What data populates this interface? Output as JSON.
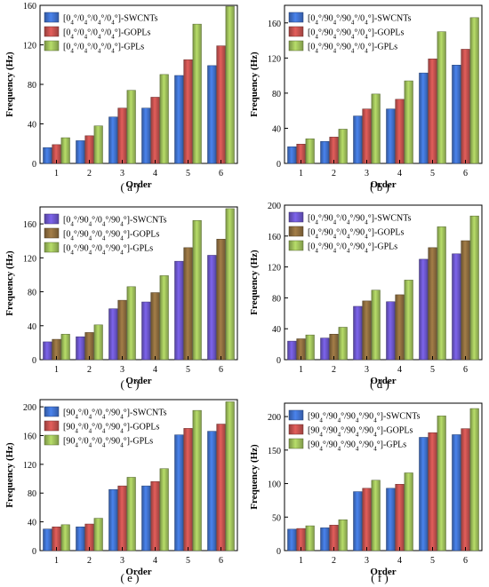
{
  "chart_data": [
    {
      "type": "bar",
      "panel_label": "( a )",
      "categories": [
        "1",
        "2",
        "3",
        "4",
        "5",
        "6"
      ],
      "xlabel": "Order",
      "ylabel": "Frequency (Hz)",
      "ylim": [
        0,
        160
      ],
      "yticks": [
        "0",
        "40",
        "80",
        "120",
        "160"
      ],
      "grid": false,
      "legend_position": "top-left",
      "series": [
        {
          "name": "[0₄°/0₄°/0₄°/0₄°]-SWCNTs",
          "color": "#3f6fc9",
          "values": [
            16,
            23,
            47,
            56,
            89,
            99
          ]
        },
        {
          "name": "[0₄°/0₄°/0₄°/0₄°]-GOPLs",
          "color": "#c0504d",
          "values": [
            19,
            28,
            56,
            67,
            105,
            119
          ]
        },
        {
          "name": "[0₄°/0₄°/0₄°/0₄°]-GPLs",
          "color": "#9bbb59",
          "values": [
            26,
            38,
            74,
            90,
            141,
            159
          ]
        }
      ]
    },
    {
      "type": "bar",
      "panel_label": "( b )",
      "categories": [
        "1",
        "2",
        "3",
        "4",
        "5",
        "6"
      ],
      "xlabel": "Order",
      "ylabel": "Frequency (Hz)",
      "ylim": [
        0,
        180
      ],
      "yticks": [
        "0",
        "40",
        "80",
        "120",
        "160"
      ],
      "grid": false,
      "legend_position": "top-left",
      "series": [
        {
          "name": "[0₄°/90₄°/90₄°/0₄°]-SWCNTs",
          "color": "#3f6fc9",
          "values": [
            19,
            25,
            54,
            62,
            103,
            112
          ]
        },
        {
          "name": "[0₄°/90₄°/90₄°/0₄°]-GOPLs",
          "color": "#c0504d",
          "values": [
            22,
            30,
            62,
            73,
            119,
            130
          ]
        },
        {
          "name": "[0₄°/90₄°/90₄°/0₄°]-GPLs",
          "color": "#9bbb59",
          "values": [
            28,
            39,
            79,
            94,
            150,
            166
          ]
        }
      ]
    },
    {
      "type": "bar",
      "panel_label": "( c )",
      "categories": [
        "1",
        "2",
        "3",
        "4",
        "5",
        "6"
      ],
      "xlabel": "Order",
      "ylabel": "Frequency (Hz)",
      "ylim": [
        0,
        180
      ],
      "yticks": [
        "0",
        "40",
        "80",
        "120",
        "160"
      ],
      "grid": false,
      "legend_position": "top-left",
      "series": [
        {
          "name": "[0₄°/90₄°/0₄°/90₄°]-SWCNTs",
          "color": "#6a55c8",
          "values": [
            21,
            27,
            60,
            68,
            116,
            123
          ]
        },
        {
          "name": "[0₄°/90₄°/0₄°/90₄°]-GOPLs",
          "color": "#8b6b3d",
          "values": [
            24,
            32,
            70,
            79,
            132,
            142
          ]
        },
        {
          "name": "[0₄°/90₄°/0₄°/90₄°]-GPLs",
          "color": "#9bbb59",
          "values": [
            30,
            41,
            86,
            99,
            164,
            178
          ]
        }
      ]
    },
    {
      "type": "bar",
      "panel_label": "( d )",
      "categories": [
        "1",
        "2",
        "3",
        "4",
        "5",
        "6"
      ],
      "xlabel": "Order",
      "ylabel": "Frequency (Hz)",
      "ylim": [
        0,
        200
      ],
      "yticks": [
        "0",
        "40",
        "80",
        "120",
        "160",
        "200"
      ],
      "grid": false,
      "legend_position": "top-left",
      "series": [
        {
          "name": "[0₄°/90₄°/0₄°/90₄°]-SWCNTs",
          "color": "#6a55c8",
          "values": [
            24,
            28,
            69,
            75,
            130,
            137
          ]
        },
        {
          "name": "[0₄°/90₄°/0₄°/90₄°]-GOPLs",
          "color": "#8b6b3d",
          "values": [
            27,
            33,
            76,
            84,
            145,
            154
          ]
        },
        {
          "name": "[0₄°/90₄°/0₄°/90₄°]-GPLs",
          "color": "#9bbb59",
          "values": [
            32,
            42,
            90,
            103,
            172,
            186
          ]
        }
      ]
    },
    {
      "type": "bar",
      "panel_label": "( e )",
      "categories": [
        "1",
        "2",
        "3",
        "4",
        "5",
        "6"
      ],
      "xlabel": "Order",
      "ylabel": "Frequency (Hz)",
      "ylim": [
        0,
        210
      ],
      "yticks": [
        "0",
        "40",
        "80",
        "120",
        "160",
        "200"
      ],
      "grid": false,
      "legend_position": "top-left",
      "series": [
        {
          "name": "[90₄°/0₄°/0₄°/90₄°]-SWCNTs",
          "color": "#3f6fc9",
          "values": [
            30,
            33,
            85,
            90,
            161,
            166
          ]
        },
        {
          "name": "[90₄°/0₄°/0₄°/90₄°]-GOPLs",
          "color": "#c0504d",
          "values": [
            33,
            37,
            90,
            96,
            170,
            176
          ]
        },
        {
          "name": "[90₄°/0₄°/0₄°/90₄°]-GPLs",
          "color": "#9bbb59",
          "values": [
            36,
            45,
            102,
            114,
            195,
            207
          ]
        }
      ]
    },
    {
      "type": "bar",
      "panel_label": "( f )",
      "categories": [
        "1",
        "2",
        "3",
        "4",
        "5",
        "6"
      ],
      "xlabel": "Order",
      "ylabel": "Frequency (Hz)",
      "ylim": [
        0,
        220
      ],
      "yticks": [
        "0",
        "50",
        "100",
        "150",
        "200"
      ],
      "grid": false,
      "legend_position": "top-left",
      "series": [
        {
          "name": "[90₄°/90₄°/90₄°/90₄°]-SWCNTs",
          "color": "#3f6fc9",
          "values": [
            32,
            34,
            88,
            93,
            169,
            173
          ]
        },
        {
          "name": "[90₄°/90₄°/90₄°/90₄°]-GOPLs",
          "color": "#c0504d",
          "values": [
            33,
            38,
            93,
            99,
            176,
            182
          ]
        },
        {
          "name": "[90₄°/90₄°/90₄°/90₄°]-GPLs",
          "color": "#9bbb59",
          "values": [
            37,
            46,
            105,
            116,
            201,
            212
          ]
        }
      ]
    }
  ]
}
